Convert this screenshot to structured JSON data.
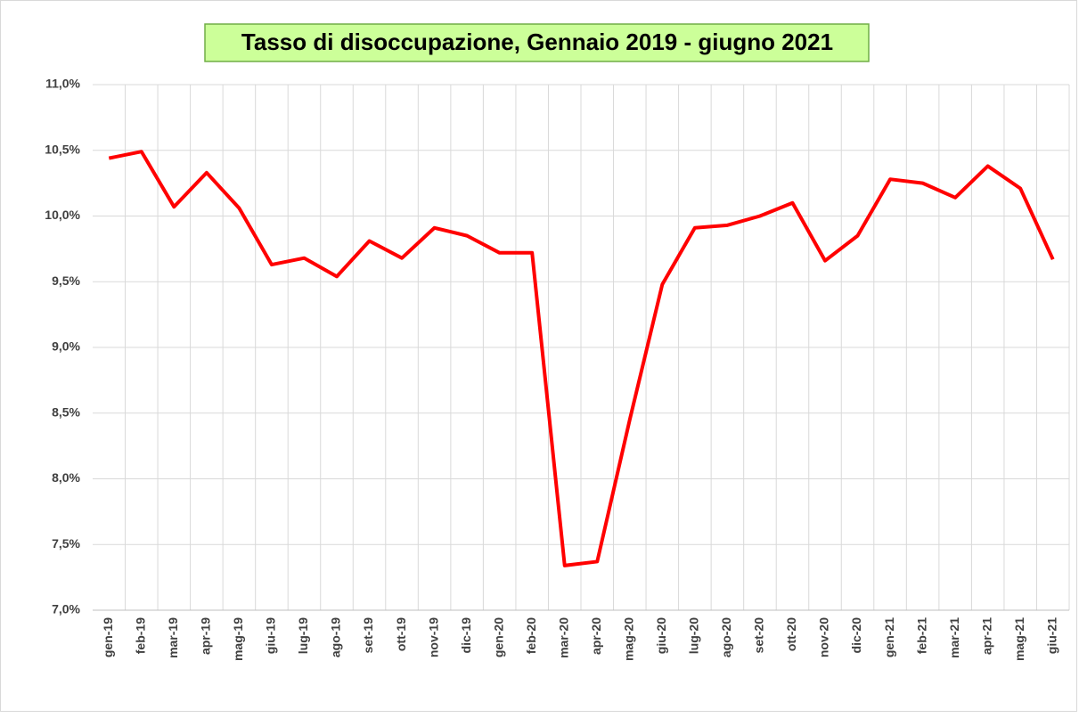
{
  "chart_data": {
    "type": "line",
    "title": "Tasso di disoccupazione, Gennaio 2019 - giugno 2021",
    "categories": [
      "gen-19",
      "feb-19",
      "mar-19",
      "apr-19",
      "mag-19",
      "giu-19",
      "lug-19",
      "ago-19",
      "set-19",
      "ott-19",
      "nov-19",
      "dic-19",
      "gen-20",
      "feb-20",
      "mar-20",
      "apr-20",
      "mag-20",
      "giu-20",
      "lug-20",
      "ago-20",
      "set-20",
      "ott-20",
      "nov-20",
      "dic-20",
      "gen-21",
      "feb-21",
      "mar-21",
      "apr-21",
      "mag-21",
      "giu-21"
    ],
    "series": [
      {
        "name": "Tasso di disoccupazione",
        "color": "#ff0000",
        "values": [
          10.44,
          10.49,
          10.07,
          10.33,
          10.06,
          9.63,
          9.68,
          9.54,
          9.81,
          9.68,
          9.91,
          9.85,
          9.72,
          9.72,
          7.34,
          7.37,
          8.45,
          9.48,
          9.91,
          9.93,
          10.0,
          10.1,
          9.66,
          9.85,
          10.28,
          10.25,
          10.14,
          10.38,
          10.21,
          9.67
        ]
      }
    ],
    "ylim": [
      7,
      11
    ],
    "yticks": [
      {
        "value": 7,
        "label": "7,0%"
      },
      {
        "value": 7.5,
        "label": "7,5%"
      },
      {
        "value": 8,
        "label": "8,0%"
      },
      {
        "value": 8.5,
        "label": "8,5%"
      },
      {
        "value": 9,
        "label": "9,0%"
      },
      {
        "value": 9.5,
        "label": "9,5%"
      },
      {
        "value": 10,
        "label": "10,0%"
      },
      {
        "value": 10.5,
        "label": "10,5%"
      },
      {
        "value": 11,
        "label": "11,0%"
      }
    ],
    "grid": true
  }
}
